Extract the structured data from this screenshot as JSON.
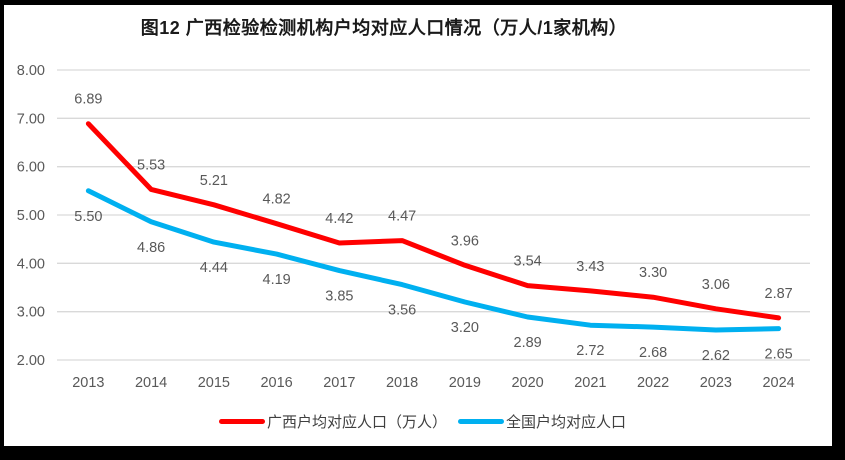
{
  "title": "图12 广西检验检测机构户均对应人口情况（万人/1家机构）",
  "colors": {
    "frame_border": "#000000",
    "background": "#ffffff",
    "grid": "#d9d9d9",
    "axis_text": "#595959",
    "data_label_text": "#595959",
    "legend_text": "#404040",
    "series_guangxi": "#ff0000",
    "series_national": "#00b0f0"
  },
  "chart_data": {
    "type": "line",
    "categories": [
      "2013",
      "2014",
      "2015",
      "2016",
      "2017",
      "2018",
      "2019",
      "2020",
      "2021",
      "2022",
      "2023",
      "2024"
    ],
    "series": [
      {
        "name": "广西户均对应人口（万人）",
        "color": "#ff0000",
        "values": [
          6.89,
          5.53,
          5.21,
          4.82,
          4.42,
          4.47,
          3.96,
          3.54,
          3.43,
          3.3,
          3.06,
          2.87
        ],
        "label_position": "above"
      },
      {
        "name": "全国户均对应人口",
        "color": "#00b0f0",
        "values": [
          5.5,
          4.86,
          4.44,
          4.19,
          3.85,
          3.56,
          3.2,
          2.89,
          2.72,
          2.68,
          2.62,
          2.65
        ],
        "label_position": "below"
      }
    ],
    "title": "图12 广西检验检测机构户均对应人口情况（万人/1家机构）",
    "xlabel": "",
    "ylabel": "",
    "ylim": [
      2,
      8
    ],
    "ytick_step": 1,
    "ytick_format_decimals": 2,
    "grid": true,
    "legend_position": "bottom",
    "data_labels": true
  }
}
